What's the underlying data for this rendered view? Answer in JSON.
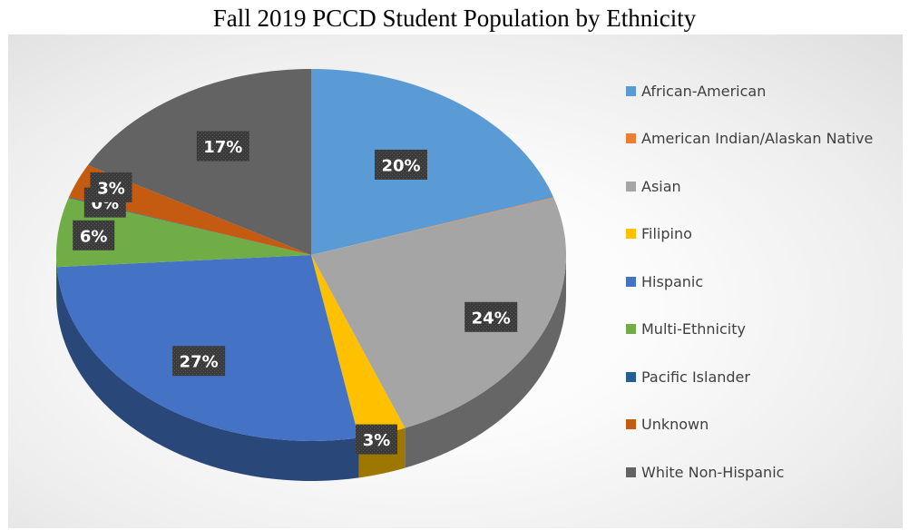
{
  "chart_data": {
    "type": "pie",
    "title": "Fall 2019 PCCD Student Population by Ethnicity",
    "categories": [
      "African-American",
      "American Indian/Alaskan Native",
      "Asian",
      "Filipino",
      "Hispanic",
      "Multi-Ethnicity",
      "Pacific Islander",
      "Unknown",
      "White Non-Hispanic"
    ],
    "values": [
      20,
      0,
      24,
      3,
      27,
      6,
      0,
      3,
      17
    ],
    "data_labels": [
      "20%",
      "",
      "24%",
      "3%",
      "27%",
      "6%",
      "0%",
      "3%",
      "17%"
    ],
    "colors": [
      "#5b9bd5",
      "#ed7d31",
      "#a5a5a5",
      "#ffc000",
      "#4472c4",
      "#70ad47",
      "#255e91",
      "#c55a11",
      "#636363"
    ],
    "legend_position": "right",
    "style": "3d"
  }
}
